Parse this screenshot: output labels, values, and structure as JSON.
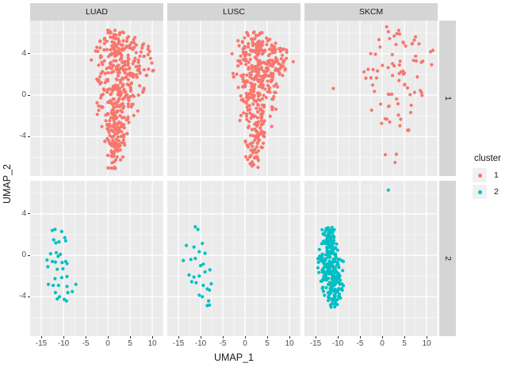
{
  "figure": {
    "x_axis_title": "UMAP_1",
    "y_axis_title": "UMAP_2"
  },
  "facets": {
    "columns": [
      "LUAD",
      "LUSC",
      "SKCM"
    ],
    "rows": [
      "1",
      "2"
    ]
  },
  "axis": {
    "x_tick_labels": [
      "-15",
      "-10",
      "-5",
      "0",
      "5",
      "10"
    ],
    "y_tick_labels": [
      "4",
      "0",
      "-4"
    ]
  },
  "legend": {
    "title": "cluster",
    "items": [
      {
        "label": "1",
        "color": "#F8766D"
      },
      {
        "label": "2",
        "color": "#00BFC4"
      }
    ]
  },
  "style": {
    "panel_bg": "#EBEBEB",
    "strip_bg": "#D5D5D5",
    "grid_major": "#FFFFFF",
    "grid_minor": "#FFFFFF",
    "tick_text_color": "#4D4D4D",
    "text_color": "#1A1A1A",
    "legend_key_bg": "#F0F0F0",
    "cluster1_color": "#F8766D",
    "cluster2_color": "#00BFC4"
  },
  "chart_data": {
    "type": "scatter",
    "title": "",
    "xlabel": "UMAP_1",
    "ylabel": "UMAP_2",
    "xlim": [
      -17.5,
      12.5
    ],
    "ylim": [
      -7.8,
      7.2
    ],
    "x_ticks": [
      -15,
      -10,
      -5,
      0,
      5,
      10
    ],
    "y_ticks": [
      4,
      0,
      -4
    ],
    "x_minor_ticks": [
      -12.5,
      -7.5,
      -2.5,
      2.5,
      7.5,
      12.5
    ],
    "y_minor_ticks": [
      -6,
      -2,
      2,
      6
    ],
    "facet_columns": [
      "LUAD",
      "LUSC",
      "SKCM"
    ],
    "facet_rows": [
      "1",
      "2"
    ],
    "legend_title": "cluster",
    "legend_position": "right",
    "grid": "white major+minor gridlines on gray panel",
    "point_radius_px": 2.1,
    "series": [
      {
        "facet_column": "LUAD",
        "facet_row": "1",
        "cluster": "1",
        "color": "#F8766D",
        "approx_n": 450,
        "seed": 11,
        "x_uniform": false,
        "envelope": [
          [
            6.4,
            -1,
            3.5
          ],
          [
            5.0,
            -3,
            9
          ],
          [
            4.0,
            -4.2,
            11.3
          ],
          [
            2.2,
            -4,
            11
          ],
          [
            0,
            -3,
            8.5
          ],
          [
            -2,
            -2.5,
            7
          ],
          [
            -3.5,
            -2,
            5.5
          ],
          [
            -5.3,
            -1,
            4.5
          ],
          [
            -7.1,
            -0.3,
            3
          ]
        ],
        "outliers": []
      },
      {
        "facet_column": "LUSC",
        "facet_row": "1",
        "cluster": "1",
        "color": "#F8766D",
        "approx_n": 430,
        "seed": 22,
        "x_uniform": false,
        "envelope": [
          [
            6.2,
            0.5,
            4
          ],
          [
            5.0,
            -3,
            10
          ],
          [
            3.5,
            -3.5,
            11.2
          ],
          [
            2,
            -3,
            10.5
          ],
          [
            0,
            -2,
            8
          ],
          [
            -2,
            -1.5,
            7
          ],
          [
            -4,
            -0.5,
            6
          ],
          [
            -5.5,
            0,
            4.5
          ],
          [
            -7,
            0.3,
            3.2
          ]
        ],
        "outliers": []
      },
      {
        "facet_column": "SKCM",
        "facet_row": "1",
        "cluster": "1",
        "color": "#F8766D",
        "approx_n": 80,
        "seed": 33,
        "x_uniform": true,
        "envelope": [
          [
            6.6,
            0.5,
            4
          ],
          [
            5.5,
            -1,
            8.5
          ],
          [
            4.2,
            -3,
            11.8
          ],
          [
            2.8,
            -4.5,
            11.8
          ],
          [
            1.2,
            -5,
            9.5
          ],
          [
            0,
            -4.5,
            9
          ],
          [
            -1.5,
            -3,
            8
          ],
          [
            -2.5,
            -1,
            7.5
          ],
          [
            -3.6,
            0.5,
            6
          ]
        ],
        "outliers": [
          [
            -11,
            0.65
          ],
          [
            0.7,
            -5.75
          ],
          [
            3.2,
            -5.7
          ],
          [
            2.9,
            -6.5
          ],
          [
            5.9,
            -3.4
          ]
        ]
      },
      {
        "facet_column": "LUAD",
        "facet_row": "2",
        "cluster": "2",
        "color": "#00BFC4",
        "points": [
          [
            -12.5,
            2.4
          ],
          [
            -11.9,
            2.5
          ],
          [
            -10.4,
            2.3
          ],
          [
            -12.2,
            1.5
          ],
          [
            -11.7,
            1.2
          ],
          [
            -11.0,
            1.3
          ],
          [
            -9.7,
            1.7
          ],
          [
            -9.5,
            1.4
          ],
          [
            -12.9,
            0.15
          ],
          [
            -11.6,
            0.25
          ],
          [
            -11.2,
            -0.1
          ],
          [
            -10.7,
            0.1
          ],
          [
            -13.7,
            -0.45
          ],
          [
            -12.5,
            -0.6
          ],
          [
            -11.8,
            -0.65
          ],
          [
            -10.3,
            -0.7
          ],
          [
            -9.5,
            -0.6
          ],
          [
            -9.2,
            -0.8
          ],
          [
            -11.4,
            -1.35
          ],
          [
            -10.1,
            -1.3
          ],
          [
            -13.5,
            -1.1
          ],
          [
            -9.2,
            -2.05
          ],
          [
            -11.9,
            -2.25
          ],
          [
            -10.4,
            -2.15
          ],
          [
            -13.4,
            -2.8
          ],
          [
            -12.3,
            -2.9
          ],
          [
            -11.1,
            -2.9
          ],
          [
            -9.2,
            -3.0
          ],
          [
            -7.2,
            -2.8
          ],
          [
            -11.8,
            -3.6
          ],
          [
            -9.0,
            -3.6
          ],
          [
            -8.0,
            -3.5
          ],
          [
            -11.4,
            -4.2
          ],
          [
            -9.8,
            -4.25
          ],
          [
            -9.3,
            -4.4
          ],
          [
            -10.9,
            -4.0
          ]
        ]
      },
      {
        "facet_column": "LUSC",
        "facet_row": "2",
        "cluster": "2",
        "color": "#00BFC4",
        "points": [
          [
            -11.2,
            2.75
          ],
          [
            -10.6,
            2.5
          ],
          [
            -13.2,
            0.95
          ],
          [
            -11.5,
            0.8
          ],
          [
            -9.6,
            1.15
          ],
          [
            -10.3,
            0.35
          ],
          [
            -9.0,
            0.2
          ],
          [
            -13.9,
            -0.5
          ],
          [
            -12.2,
            -0.4
          ],
          [
            -11.2,
            -0.3
          ],
          [
            -9.4,
            -0.85
          ],
          [
            -7.9,
            -1.4
          ],
          [
            -9.0,
            -1.6
          ],
          [
            -11.5,
            -2.1
          ],
          [
            -10.3,
            -2.0
          ],
          [
            -12.0,
            -2.55
          ],
          [
            -11.0,
            -2.65
          ],
          [
            -9.4,
            -2.9
          ],
          [
            -7.6,
            -2.75
          ],
          [
            -8.5,
            -3.25
          ],
          [
            -8.0,
            -3.35
          ],
          [
            -10.3,
            -3.85
          ],
          [
            -9.6,
            -4.0
          ],
          [
            -8.2,
            -4.4
          ],
          [
            -8.0,
            -4.8
          ],
          [
            -8.5,
            -4.85
          ],
          [
            -10.0,
            -1.0
          ],
          [
            -12.6,
            -1.9
          ]
        ]
      },
      {
        "facet_column": "SKCM",
        "facet_row": "2",
        "cluster": "2",
        "color": "#00BFC4",
        "approx_n": 290,
        "seed": 44,
        "x_uniform": false,
        "envelope": [
          [
            2.7,
            -13.6,
            -10.5
          ],
          [
            1.5,
            -14.3,
            -9.5
          ],
          [
            0,
            -14.8,
            -8.6
          ],
          [
            -1.5,
            -14.7,
            -8.2
          ],
          [
            -3,
            -14,
            -8.6
          ],
          [
            -4.3,
            -13,
            -9.4
          ],
          [
            -5,
            -12.2,
            -10.4
          ]
        ],
        "outliers": [
          [
            1.4,
            6.3
          ]
        ]
      }
    ]
  }
}
